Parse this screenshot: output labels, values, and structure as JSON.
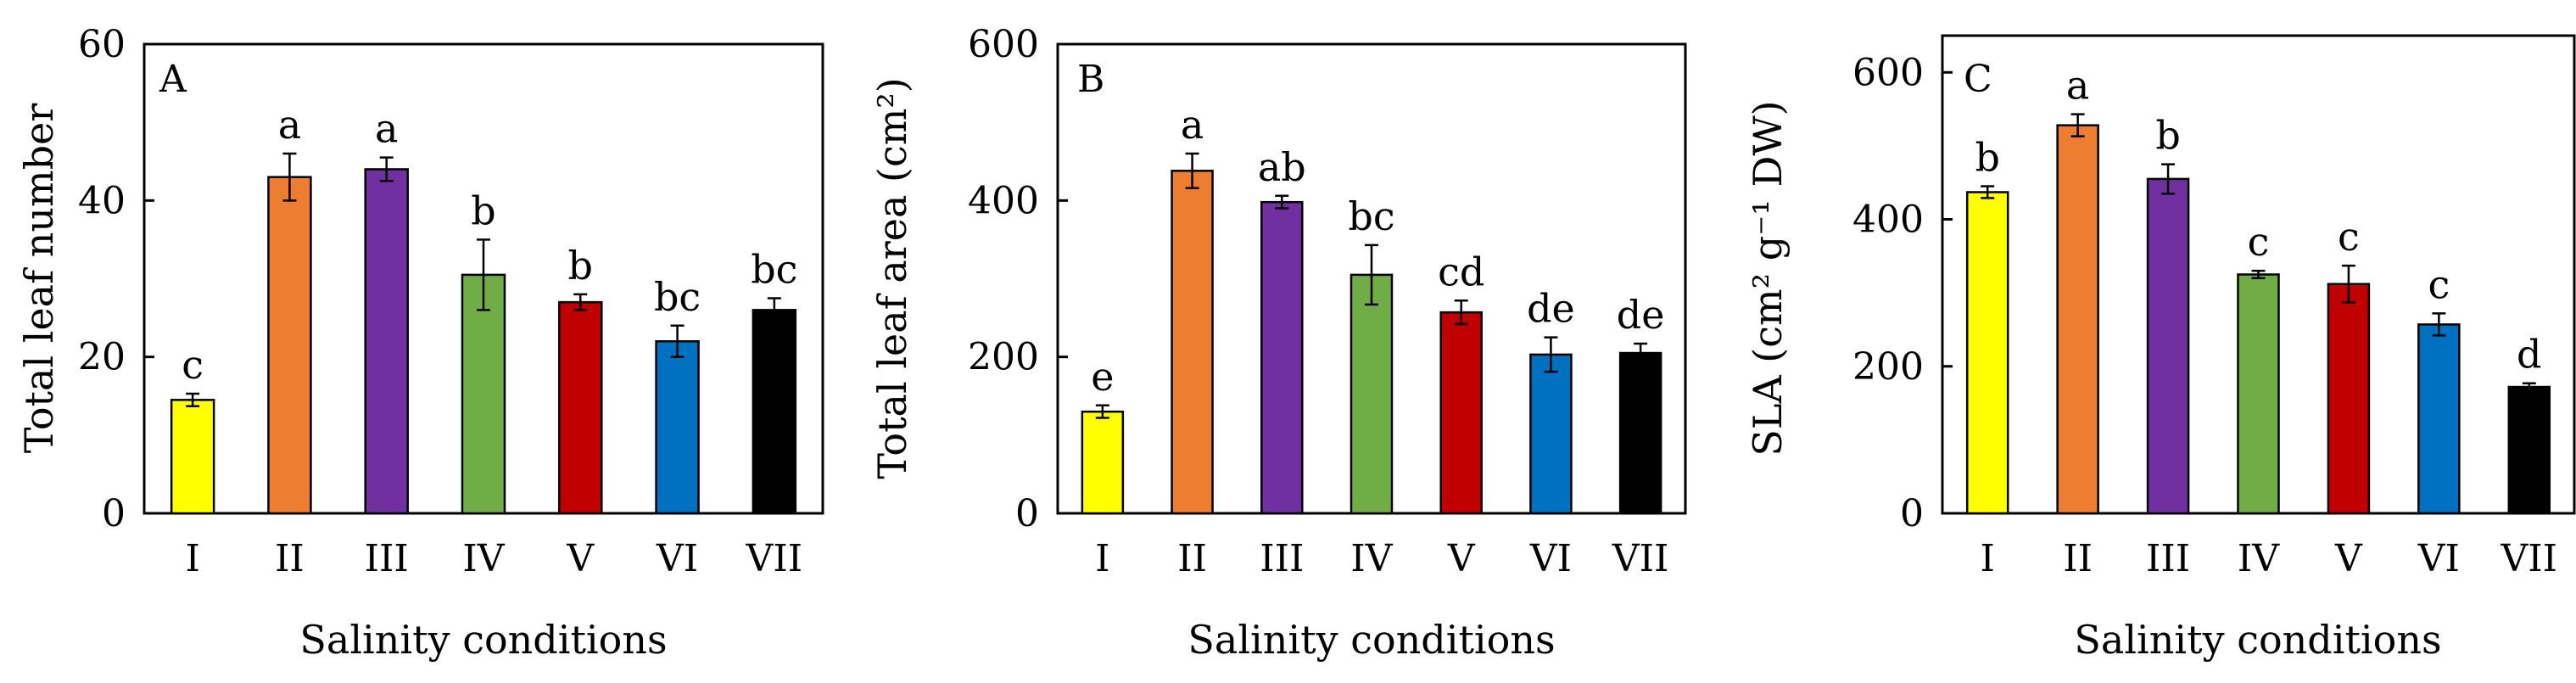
{
  "chart_data": [
    {
      "panel": "A",
      "type": "bar",
      "categories": [
        "I",
        "II",
        "III",
        "IV",
        "V",
        "VI",
        "VII"
      ],
      "values": [
        14.5,
        43,
        44,
        30.5,
        27,
        22,
        26
      ],
      "errors": [
        0.8,
        3.0,
        1.5,
        4.5,
        1.0,
        2.0,
        1.5
      ],
      "letters": [
        "c",
        "a",
        "a",
        "b",
        "b",
        "bc",
        "bc"
      ],
      "colors": [
        "#ffff00",
        "#ed7d31",
        "#7030a0",
        "#70ad47",
        "#c00000",
        "#0070c0",
        "#000000"
      ],
      "ylabel": "Total leaf  number",
      "xlabel": "Salinity conditions",
      "ylim": [
        0,
        60
      ],
      "yticks": [
        0,
        20,
        40,
        60
      ]
    },
    {
      "panel": "B",
      "type": "bar",
      "categories": [
        "I",
        "II",
        "III",
        "IV",
        "V",
        "VI",
        "VII"
      ],
      "values": [
        130,
        438,
        398,
        305,
        257,
        203,
        205
      ],
      "errors": [
        8,
        22,
        8,
        38,
        15,
        22,
        12
      ],
      "letters": [
        "e",
        "a",
        "ab",
        "bc",
        "cd",
        "de",
        "de"
      ],
      "colors": [
        "#ffff00",
        "#ed7d31",
        "#7030a0",
        "#70ad47",
        "#c00000",
        "#0070c0",
        "#000000"
      ],
      "ylabel": "Total leaf area (cm²)",
      "xlabel": "Salinity conditions",
      "ylim": [
        0,
        600
      ],
      "yticks": [
        0,
        200,
        400,
        600
      ]
    },
    {
      "panel": "C",
      "type": "bar",
      "categories": [
        "I",
        "II",
        "III",
        "IV",
        "V",
        "VI",
        "VII"
      ],
      "values": [
        437,
        528,
        455,
        325,
        312,
        257,
        172
      ],
      "errors": [
        8,
        15,
        20,
        5,
        25,
        15,
        5
      ],
      "letters": [
        "b",
        "a",
        "b",
        "c",
        "c",
        "c",
        "d"
      ],
      "colors": [
        "#ffff00",
        "#ed7d31",
        "#7030a0",
        "#70ad47",
        "#c00000",
        "#0070c0",
        "#000000"
      ],
      "ylabel": "SLA (cm² g⁻¹ DW)",
      "xlabel": "Salinity conditions",
      "ylim": [
        0,
        650
      ],
      "yticks": [
        0,
        200,
        400,
        600
      ]
    }
  ]
}
